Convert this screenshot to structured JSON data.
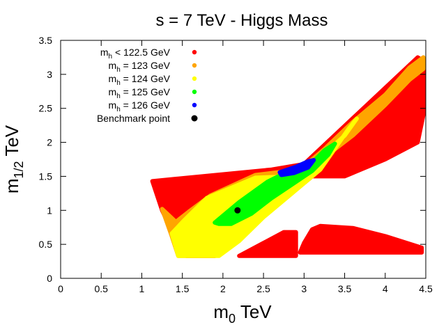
{
  "chart_data": {
    "type": "scatter",
    "title": "s = 7 TeV - Higgs Mass",
    "xlabel": {
      "main": "m",
      "sub": "0",
      "unit": " TeV"
    },
    "ylabel": {
      "main": "m",
      "sub": "1/2",
      "unit": " TeV"
    },
    "xlim": [
      0,
      4.5
    ],
    "ylim": [
      0,
      3.5
    ],
    "xticks": [
      0,
      0.5,
      1,
      1.5,
      2,
      2.5,
      3,
      3.5,
      4,
      4.5
    ],
    "xtick_labels": [
      "0",
      "0.5",
      "1",
      "1.5",
      "2",
      "2.5",
      "3",
      "3.5",
      "4",
      "4.5"
    ],
    "yticks": [
      0,
      0.5,
      1,
      1.5,
      2,
      2.5,
      3,
      3.5
    ],
    "ytick_labels": [
      "0",
      "0.5",
      "1",
      "1.5",
      "2",
      "2.5",
      "3",
      "3.5"
    ],
    "grid": false,
    "legend_position": "top-left",
    "series": [
      {
        "name": "mh < 122.5 GeV",
        "label": {
          "main": "m",
          "sub": "h",
          "rest": " < 122.5 GeV"
        },
        "color": "#ff0000",
        "regions": [
          [
            [
              1.13,
              1.43
            ],
            [
              2.6,
              1.6
            ],
            [
              3.0,
              1.68
            ],
            [
              4.4,
              3.25
            ],
            [
              4.47,
              3.2
            ],
            [
              4.47,
              2.4
            ],
            [
              4.4,
              2.0
            ],
            [
              4.0,
              1.75
            ],
            [
              3.5,
              1.5
            ],
            [
              3.1,
              1.5
            ],
            [
              1.9,
              0.33
            ],
            [
              1.55,
              0.33
            ],
            [
              1.35,
              0.75
            ],
            [
              1.25,
              1.0
            ]
          ],
          [
            [
              2.2,
              0.33
            ],
            [
              2.5,
              0.52
            ],
            [
              2.75,
              0.68
            ],
            [
              2.9,
              0.68
            ],
            [
              2.9,
              0.33
            ]
          ],
          [
            [
              2.95,
              0.38
            ],
            [
              3.0,
              0.52
            ],
            [
              3.1,
              0.72
            ],
            [
              3.2,
              0.77
            ],
            [
              3.6,
              0.74
            ],
            [
              4.0,
              0.62
            ],
            [
              4.45,
              0.45
            ],
            [
              4.45,
              0.38
            ]
          ]
        ]
      },
      {
        "name": "mh = 123 GeV",
        "label": {
          "main": "m",
          "sub": "h",
          "rest": " = 123 GeV"
        },
        "color": "#ffa500",
        "regions": [
          [
            [
              1.25,
              1.02
            ],
            [
              1.42,
              0.83
            ],
            [
              1.58,
              0.98
            ],
            [
              1.85,
              1.22
            ],
            [
              2.4,
              1.52
            ],
            [
              2.95,
              1.6
            ],
            [
              3.25,
              1.9
            ],
            [
              3.6,
              2.3
            ],
            [
              4.0,
              2.7
            ],
            [
              4.3,
              3.1
            ],
            [
              4.47,
              3.25
            ],
            [
              4.47,
              3.08
            ],
            [
              4.3,
              2.92
            ],
            [
              4.0,
              2.55
            ],
            [
              3.6,
              2.1
            ],
            [
              3.25,
              1.78
            ],
            [
              2.9,
              1.4
            ],
            [
              2.6,
              1.05
            ],
            [
              2.2,
              0.6
            ],
            [
              1.9,
              0.33
            ],
            [
              1.45,
              0.33
            ],
            [
              1.37,
              0.62
            ]
          ]
        ]
      },
      {
        "name": "mh = 124 GeV",
        "label": {
          "main": "m",
          "sub": "h",
          "rest": " = 124 GeV"
        },
        "color": "#ffff00",
        "regions": [
          [
            [
              1.37,
              0.66
            ],
            [
              1.52,
              0.85
            ],
            [
              1.8,
              1.18
            ],
            [
              2.4,
              1.48
            ],
            [
              2.9,
              1.5
            ],
            [
              3.2,
              1.78
            ],
            [
              3.5,
              2.1
            ],
            [
              3.65,
              2.35
            ],
            [
              3.55,
              2.2
            ],
            [
              3.2,
              1.6
            ],
            [
              2.85,
              1.25
            ],
            [
              2.5,
              0.9
            ],
            [
              2.2,
              0.55
            ],
            [
              1.95,
              0.33
            ],
            [
              1.45,
              0.33
            ]
          ]
        ]
      },
      {
        "name": "mh = 125 GeV",
        "label": {
          "main": "m",
          "sub": "h",
          "rest": " = 125 GeV"
        },
        "color": "#00ff00",
        "regions": [
          [
            [
              1.9,
              0.82
            ],
            [
              2.2,
              1.12
            ],
            [
              2.55,
              1.42
            ],
            [
              2.85,
              1.6
            ],
            [
              3.1,
              1.7
            ],
            [
              3.25,
              1.88
            ],
            [
              3.38,
              1.98
            ],
            [
              3.3,
              1.82
            ],
            [
              3.1,
              1.58
            ],
            [
              2.85,
              1.38
            ],
            [
              2.6,
              1.18
            ],
            [
              2.35,
              0.95
            ],
            [
              2.1,
              0.8
            ],
            [
              1.95,
              0.8
            ]
          ]
        ]
      },
      {
        "name": "mh = 126 GeV",
        "label": {
          "main": "m",
          "sub": "h",
          "rest": " = 126 GeV"
        },
        "color": "#0000ff",
        "regions": [
          [
            [
              2.7,
              1.56
            ],
            [
              2.9,
              1.64
            ],
            [
              3.05,
              1.72
            ],
            [
              3.12,
              1.74
            ],
            [
              3.05,
              1.63
            ],
            [
              2.88,
              1.55
            ],
            [
              2.72,
              1.52
            ]
          ]
        ]
      },
      {
        "name": "Benchmark point",
        "label": {
          "main": "Benchmark point",
          "sub": "",
          "rest": ""
        },
        "color": "#000000",
        "points": [
          [
            2.18,
            1.0
          ]
        ]
      }
    ]
  }
}
